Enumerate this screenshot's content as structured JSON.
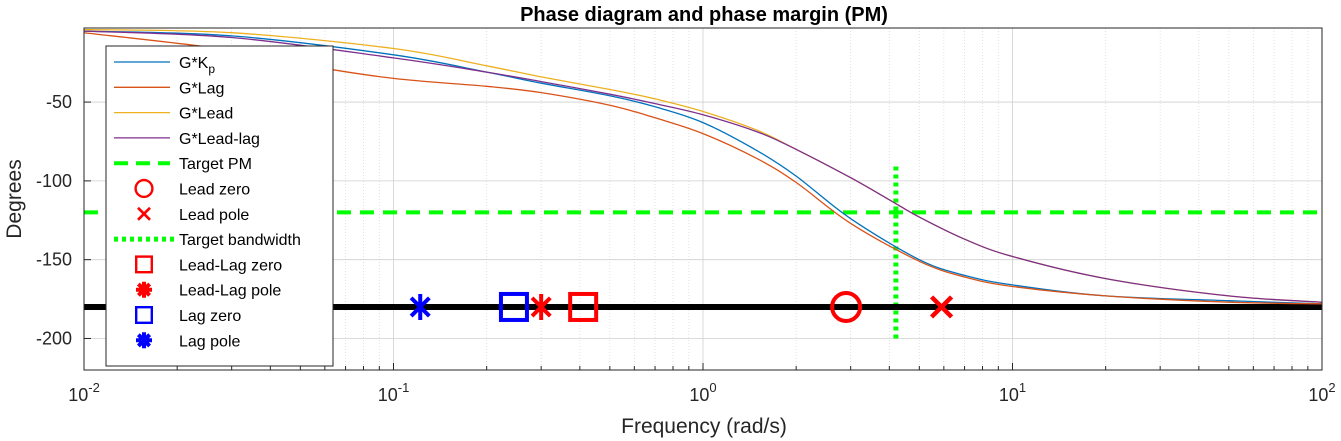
{
  "chart_data": {
    "type": "line",
    "title": "Phase diagram and phase margin (PM)",
    "xlabel": "Frequency (rad/s)",
    "ylabel": "Degrees",
    "xscale": "log",
    "xlim": [
      0.01,
      100
    ],
    "ylim": [
      -220,
      -3
    ],
    "x_ticks": [
      {
        "base": "10",
        "exp": "-2"
      },
      {
        "base": "10",
        "exp": "-1"
      },
      {
        "base": "10",
        "exp": "0"
      },
      {
        "base": "10",
        "exp": "1"
      },
      {
        "base": "10",
        "exp": "2"
      }
    ],
    "y_ticks": [
      "-50",
      "-100",
      "-150",
      "-200"
    ],
    "y_tick_values": [
      -50,
      -100,
      -150,
      -200
    ],
    "grid": true,
    "legend_position": "top-left",
    "series": [
      {
        "name": "G*K_p",
        "label_main": "G*K",
        "label_sub": "p",
        "color": "#0072BD",
        "x": [
          0.01,
          0.03,
          0.1,
          0.2,
          0.3,
          0.5,
          0.7,
          1,
          1.5,
          2,
          3,
          5,
          7,
          10,
          20,
          50,
          100
        ],
        "y": [
          -5,
          -8,
          -20,
          -31,
          -38,
          -46,
          -53,
          -63,
          -81,
          -97,
          -124,
          -150,
          -160,
          -166,
          -173,
          -176,
          -178
        ]
      },
      {
        "name": "G*Lag",
        "label_main": "G*Lag",
        "label_sub": "",
        "color": "#D95319",
        "x": [
          0.01,
          0.03,
          0.05,
          0.1,
          0.2,
          0.3,
          0.5,
          0.7,
          1,
          1.5,
          2,
          3,
          5,
          7,
          10,
          20,
          50,
          100
        ],
        "y": [
          -6,
          -17,
          -26,
          -35,
          -40,
          -44,
          -52,
          -60,
          -70,
          -86,
          -101,
          -127,
          -151,
          -161,
          -167,
          -173,
          -177,
          -178
        ]
      },
      {
        "name": "G*Lead",
        "label_main": "G*Lead",
        "label_sub": "",
        "color": "#EDB120",
        "x": [
          0.01,
          0.03,
          0.1,
          0.2,
          0.3,
          0.5,
          0.7,
          1,
          1.5,
          2,
          3,
          4,
          5,
          7,
          10,
          20,
          50,
          100
        ],
        "y": [
          -4,
          -6,
          -16,
          -27,
          -34,
          -42,
          -48,
          -56,
          -68,
          -80,
          -98,
          -112,
          -123,
          -137,
          -148,
          -162,
          -173,
          -177
        ]
      },
      {
        "name": "G*Lead-lag",
        "label_main": "G*Lead-lag",
        "label_sub": "",
        "color": "#7E2F8E",
        "x": [
          0.01,
          0.03,
          0.1,
          0.2,
          0.3,
          0.5,
          0.7,
          1,
          1.5,
          2,
          3,
          4,
          5,
          7,
          10,
          20,
          50,
          100
        ],
        "y": [
          -5,
          -9,
          -22,
          -31,
          -37,
          -45,
          -51,
          -58,
          -69,
          -80,
          -98,
          -112,
          -123,
          -137,
          -148,
          -162,
          -173,
          -177
        ]
      }
    ],
    "reference_lines": [
      {
        "name": "Target PM",
        "orientation": "horizontal",
        "value": -120,
        "color": "#00FF00",
        "style": "dashed"
      },
      {
        "name": "Target bandwidth",
        "orientation": "vertical",
        "value": 4.2,
        "y_range": [
          -200,
          -90
        ],
        "color": "#00FF00",
        "style": "dotted"
      },
      {
        "name": "",
        "orientation": "horizontal",
        "value": -180,
        "color": "#000000",
        "style": "solid-thick"
      }
    ],
    "markers": [
      {
        "name": "Lead zero",
        "marker": "circle",
        "color": "#FF0000",
        "x": 2.9,
        "y": -180
      },
      {
        "name": "Lead pole",
        "marker": "x",
        "color": "#FF0000",
        "x": 5.9,
        "y": -180
      },
      {
        "name": "Lead-Lag zero",
        "marker": "square",
        "color": "#FF0000",
        "x": 0.41,
        "y": -180
      },
      {
        "name": "Lead-Lag pole",
        "marker": "asterisk",
        "color": "#FF0000",
        "x": 0.3,
        "y": -180
      },
      {
        "name": "Lag zero",
        "marker": "square",
        "color": "#0000FF",
        "x": 0.245,
        "y": -180
      },
      {
        "name": "Lag pole",
        "marker": "asterisk",
        "color": "#0000FF",
        "x": 0.122,
        "y": -180
      }
    ],
    "legend": [
      {
        "label_main": "G*K",
        "label_sub": "p",
        "kind": "line",
        "color": "#0072BD"
      },
      {
        "label_main": "G*Lag",
        "label_sub": "",
        "kind": "line",
        "color": "#D95319"
      },
      {
        "label_main": "G*Lead",
        "label_sub": "",
        "kind": "line",
        "color": "#EDB120"
      },
      {
        "label_main": "G*Lead-lag",
        "label_sub": "",
        "kind": "line",
        "color": "#7E2F8E"
      },
      {
        "label_main": "Target PM",
        "label_sub": "",
        "kind": "dashed",
        "color": "#00FF00"
      },
      {
        "label_main": "Lead zero",
        "label_sub": "",
        "kind": "circle",
        "color": "#FF0000"
      },
      {
        "label_main": "Lead pole",
        "label_sub": "",
        "kind": "x",
        "color": "#FF0000"
      },
      {
        "label_main": "Target bandwidth",
        "label_sub": "",
        "kind": "dotted",
        "color": "#00FF00"
      },
      {
        "label_main": "Lead-Lag zero",
        "label_sub": "",
        "kind": "square",
        "color": "#FF0000"
      },
      {
        "label_main": "Lead-Lag pole",
        "label_sub": "",
        "kind": "dot",
        "color": "#FF0000"
      },
      {
        "label_main": "Lag zero",
        "label_sub": "",
        "kind": "square",
        "color": "#0000FF"
      },
      {
        "label_main": "Lag pole",
        "label_sub": "",
        "kind": "dot",
        "color": "#0000FF"
      }
    ]
  }
}
